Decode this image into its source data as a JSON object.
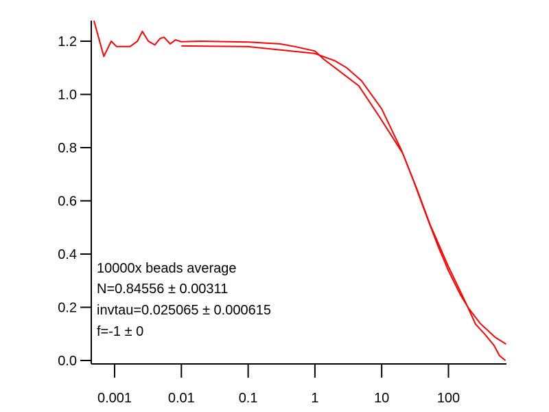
{
  "chart_data": {
    "type": "line",
    "title": "",
    "xlabel": "",
    "ylabel": "",
    "x_scale": "log",
    "xlim": [
      0.00045,
      730
    ],
    "ylim": [
      0,
      1.28
    ],
    "grid": false,
    "x_ticks": [
      0.001,
      0.01,
      0.1,
      1,
      10,
      100
    ],
    "x_tick_labels": [
      "0.001",
      "0.01",
      "0.1",
      "1",
      "10",
      "100"
    ],
    "y_ticks": [
      0,
      0.2,
      0.4,
      0.6,
      0.8,
      1.0,
      1.2
    ],
    "y_tick_labels": [
      "0.0",
      "0.2",
      "0.4",
      "0.6",
      "0.8",
      "1.0",
      "1.2"
    ],
    "line_color": "#ff0000",
    "annotation": [
      "10000x beads average",
      "N=0.84556 ± 0.00311",
      "invtau=0.025065 ± 0.000615",
      "f=-1 ± 0"
    ],
    "series": [
      {
        "x": [
          0.00049,
          0.00069,
          0.00089,
          0.00107,
          0.0017,
          0.0022,
          0.0026,
          0.0032,
          0.004,
          0.0048,
          0.0055,
          0.0068,
          0.0082,
          0.01,
          0.02,
          0.05,
          0.1,
          0.3,
          0.5,
          1,
          1.39,
          2,
          4.55,
          9.25,
          20.6,
          33,
          53,
          98.6,
          174,
          254,
          352,
          480,
          582,
          715
        ],
        "y": [
          1.277,
          1.143,
          1.2,
          1.18,
          1.18,
          1.2,
          1.237,
          1.2,
          1.186,
          1.21,
          1.215,
          1.19,
          1.205,
          1.198,
          1.2,
          1.198,
          1.197,
          1.19,
          1.18,
          1.163,
          1.13,
          1.1,
          1.032,
          0.916,
          0.779,
          0.65,
          0.511,
          0.356,
          0.227,
          0.137,
          0.098,
          0.057,
          0.018,
          0.0
        ]
      },
      {
        "x": [
          0.01,
          0.1,
          1,
          2,
          3,
          5,
          10,
          20,
          30,
          50,
          70,
          100,
          150,
          200,
          300,
          500,
          730
        ],
        "y": [
          1.1823,
          1.1796,
          1.1537,
          1.1262,
          1.0999,
          1.0509,
          0.9456,
          0.7877,
          0.675,
          0.5249,
          0.4293,
          0.3373,
          0.2485,
          0.1967,
          0.1388,
          0.0874,
          0.0613
        ]
      }
    ]
  }
}
